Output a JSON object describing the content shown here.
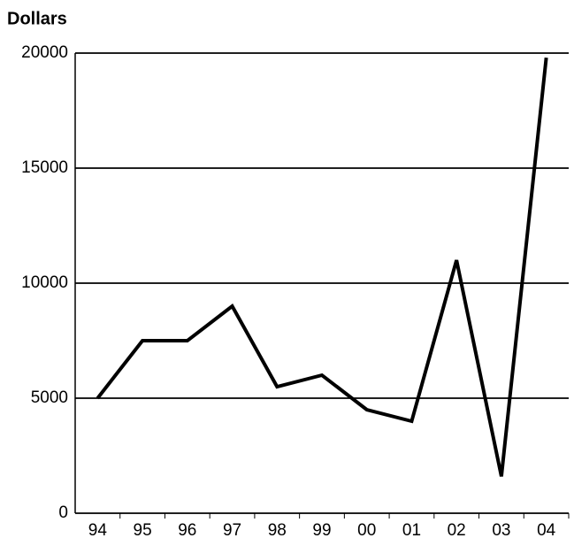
{
  "chart_data": {
    "type": "line",
    "title": "Dollars",
    "categories": [
      "94",
      "95",
      "96",
      "97",
      "98",
      "99",
      "00",
      "01",
      "02",
      "03",
      "04"
    ],
    "values": [
      5000,
      7500,
      7500,
      9000,
      5500,
      6000,
      4500,
      4000,
      11000,
      1600,
      19800
    ],
    "color": "#000000",
    "ylim": [
      0,
      20000
    ],
    "yticks": [
      0,
      5000,
      10000,
      15000,
      20000
    ],
    "grid": true
  }
}
